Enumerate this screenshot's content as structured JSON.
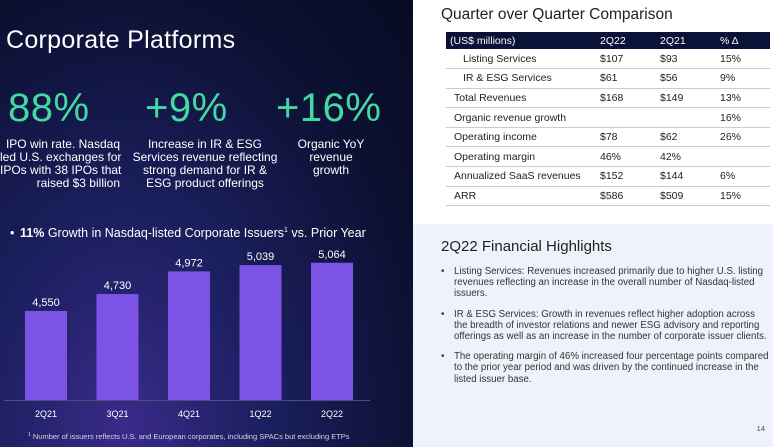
{
  "left": {
    "title": "Corporate Platforms",
    "stats": [
      {
        "value": "88%",
        "lines": [
          "IPO win rate. Nasdaq",
          "led U.S. exchanges for",
          "IPOs with 38 IPOs that",
          "raised $3 billion"
        ]
      },
      {
        "value": "+9%",
        "lines": [
          "Increase in IR & ESG",
          "Services revenue reflecting",
          "strong demand for IR &",
          "ESG product offerings"
        ]
      },
      {
        "value": "+16%",
        "lines": [
          "Organic YoY",
          "revenue",
          "growth"
        ]
      }
    ],
    "growth_bold": "11%",
    "growth_text": " Growth in Nasdaq-listed Corporate Issuers",
    "growth_sup": "1",
    "growth_tail": " vs. Prior Year",
    "footnote_sup": "1",
    "footnote": " Number of issuers reflects U.S. and European corporates, including SPACs but excluding ETPs"
  },
  "chart_data": {
    "type": "bar",
    "title": "",
    "xlabel": "",
    "ylabel": "",
    "categories": [
      "2Q21",
      "3Q21",
      "4Q21",
      "1Q22",
      "2Q22"
    ],
    "values": [
      4550,
      4730,
      4972,
      5039,
      5064
    ],
    "value_labels": [
      "4,550",
      "4,730",
      "4,972",
      "5,039",
      "5,064"
    ],
    "ylim": [
      3600,
      5200
    ],
    "bar_color": "#7d53e6",
    "grid": false
  },
  "qoq": {
    "title": "Quarter over Quarter Comparison",
    "headers": [
      "(US$ millions)",
      "2Q22",
      "2Q21",
      "% Δ"
    ],
    "rows": [
      [
        "Listing Services",
        "$107",
        "$93",
        "15%"
      ],
      [
        "IR & ESG Services",
        "$61",
        "$56",
        "9%"
      ],
      [
        "Total Revenues",
        "$168",
        "$149",
        "13%"
      ],
      [
        "Organic revenue growth",
        "",
        "",
        "16%"
      ],
      [
        "Operating income",
        "$78",
        "$62",
        "26%"
      ],
      [
        "Operating margin",
        "46%",
        "42%",
        ""
      ],
      [
        "Annualized SaaS revenues",
        "$152",
        "$144",
        "6%"
      ],
      [
        "ARR",
        "$586",
        "$509",
        "15%"
      ]
    ]
  },
  "highlights": {
    "title": "2Q22 Financial Highlights",
    "bullet": "•",
    "items": [
      "Listing Services:  Revenues increased primarily due to higher U.S. listing revenues reflecting an increase in the overall number of Nasdaq-listed issuers.",
      "IR & ESG Services: Growth in revenues reflect higher adoption across the breadth of investor relations and newer ESG advisory and reporting offerings as well as an increase in the number of corporate issuer clients.",
      "The operating margin of 46% increased four percentage points compared to the prior year period and was driven by the continued increase in the listed issuer base."
    ]
  },
  "page_number": "14",
  "colors": {
    "accent_green": "#43d9a2",
    "table_header": "#0b1238",
    "bar": "#7d53e6"
  }
}
